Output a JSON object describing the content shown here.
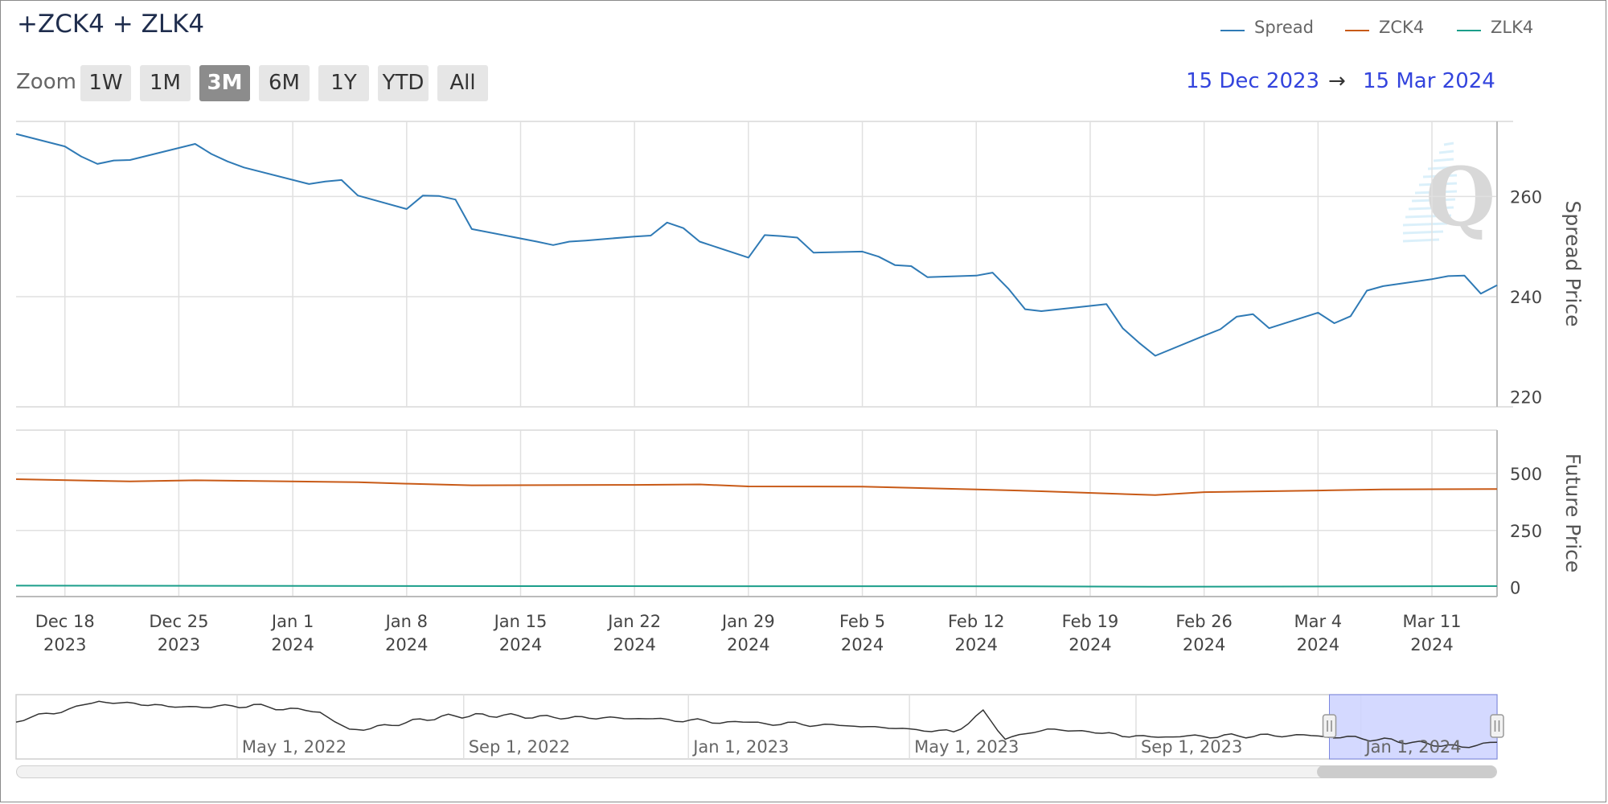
{
  "header": {
    "title": "+ZCK4 + ZLK4",
    "zoom_label": "Zoom",
    "zoom_buttons": [
      "1W",
      "1M",
      "3M",
      "6M",
      "1Y",
      "YTD",
      "All"
    ],
    "zoom_active": "3M",
    "range_start": "15 Dec 2023",
    "range_arrow": "→",
    "range_end": "15 Mar 2024"
  },
  "legend": [
    {
      "name": "Spread",
      "color": "#2f7ab5"
    },
    {
      "name": "ZCK4",
      "color": "#c85a17"
    },
    {
      "name": "ZLK4",
      "color": "#1b9e8a"
    }
  ],
  "colors": {
    "spread": "#2f7ab5",
    "zck4": "#c85a17",
    "zlk4": "#1b9e8a",
    "grid": "#e0e0e0",
    "navigator_mask": "#ccd2ff"
  },
  "watermark_icon": "q-logo-icon",
  "chart_data": [
    {
      "type": "line",
      "panel": "spread",
      "ylabel": "Spread Price",
      "ylim": [
        218,
        275
      ],
      "yticks": [
        220,
        240,
        260
      ],
      "x_start": "2023-12-15",
      "x_end": "2024-03-15",
      "x_tick_labels": [
        {
          "date": "2023-12-18",
          "line1": "Dec 18",
          "line2": "2023"
        },
        {
          "date": "2023-12-25",
          "line1": "Dec 25",
          "line2": "2023"
        },
        {
          "date": "2024-01-01",
          "line1": "Jan 1",
          "line2": "2024"
        },
        {
          "date": "2024-01-08",
          "line1": "Jan 8",
          "line2": "2024"
        },
        {
          "date": "2024-01-15",
          "line1": "Jan 15",
          "line2": "2024"
        },
        {
          "date": "2024-01-22",
          "line1": "Jan 22",
          "line2": "2024"
        },
        {
          "date": "2024-01-29",
          "line1": "Jan 29",
          "line2": "2024"
        },
        {
          "date": "2024-02-05",
          "line1": "Feb 5",
          "line2": "2024"
        },
        {
          "date": "2024-02-12",
          "line1": "Feb 12",
          "line2": "2024"
        },
        {
          "date": "2024-02-19",
          "line1": "Feb 19",
          "line2": "2024"
        },
        {
          "date": "2024-02-26",
          "line1": "Feb 26",
          "line2": "2024"
        },
        {
          "date": "2024-03-04",
          "line1": "Mar 4",
          "line2": "2024"
        },
        {
          "date": "2024-03-11",
          "line1": "Mar 11",
          "line2": "2024"
        }
      ],
      "series": [
        {
          "name": "Spread",
          "color": "#2f7ab5",
          "x": [
            "2023-12-15",
            "2023-12-18",
            "2023-12-19",
            "2023-12-20",
            "2023-12-21",
            "2023-12-22",
            "2023-12-26",
            "2023-12-27",
            "2023-12-28",
            "2023-12-29",
            "2024-01-02",
            "2024-01-03",
            "2024-01-04",
            "2024-01-05",
            "2024-01-08",
            "2024-01-09",
            "2024-01-10",
            "2024-01-11",
            "2024-01-12",
            "2024-01-16",
            "2024-01-17",
            "2024-01-18",
            "2024-01-19",
            "2024-01-22",
            "2024-01-23",
            "2024-01-24",
            "2024-01-25",
            "2024-01-26",
            "2024-01-29",
            "2024-01-30",
            "2024-01-31",
            "2024-02-01",
            "2024-02-02",
            "2024-02-05",
            "2024-02-06",
            "2024-02-07",
            "2024-02-08",
            "2024-02-09",
            "2024-02-12",
            "2024-02-13",
            "2024-02-14",
            "2024-02-15",
            "2024-02-16",
            "2024-02-20",
            "2024-02-21",
            "2024-02-22",
            "2024-02-23",
            "2024-02-26",
            "2024-02-27",
            "2024-02-28",
            "2024-02-29",
            "2024-03-01",
            "2024-03-04",
            "2024-03-05",
            "2024-03-06",
            "2024-03-07",
            "2024-03-08",
            "2024-03-11",
            "2024-03-12",
            "2024-03-13",
            "2024-03-14",
            "2024-03-15"
          ],
          "values": [
            272.5,
            270.0,
            268.0,
            266.5,
            267.2,
            267.3,
            270.5,
            268.5,
            267.0,
            265.8,
            262.5,
            263.0,
            263.3,
            260.2,
            257.5,
            260.2,
            260.1,
            259.4,
            253.5,
            251.0,
            250.3,
            251.0,
            251.2,
            252.0,
            252.2,
            254.8,
            253.7,
            251.0,
            247.8,
            252.3,
            252.1,
            251.8,
            248.8,
            249.0,
            248.0,
            246.3,
            246.1,
            243.9,
            244.2,
            244.8,
            241.5,
            237.5,
            237.1,
            238.5,
            233.7,
            230.8,
            228.2,
            232.2,
            233.5,
            236.0,
            236.5,
            233.7,
            236.8,
            234.7,
            236.1,
            241.2,
            242.1,
            243.5,
            244.1,
            244.2,
            240.6,
            242.3
          ]
        }
      ]
    },
    {
      "type": "line",
      "panel": "futures",
      "ylabel": "Future Price",
      "ylim": [
        -40,
        690
      ],
      "yticks": [
        0,
        250,
        500
      ],
      "series": [
        {
          "name": "ZCK4",
          "color": "#c85a17",
          "x": [
            "2023-12-15",
            "2023-12-22",
            "2023-12-26",
            "2024-01-05",
            "2024-01-08",
            "2024-01-12",
            "2024-01-22",
            "2024-01-26",
            "2024-01-29",
            "2024-02-05",
            "2024-02-12",
            "2024-02-16",
            "2024-02-23",
            "2024-02-26",
            "2024-03-04",
            "2024-03-08",
            "2024-03-15"
          ],
          "values": [
            475,
            465,
            470,
            462,
            455,
            448,
            450,
            452,
            443,
            442,
            430,
            422,
            405,
            418,
            425,
            430,
            432
          ]
        },
        {
          "name": "ZLK4",
          "color": "#1b9e8a",
          "x": [
            "2023-12-15",
            "2024-01-15",
            "2024-02-15",
            "2024-02-23",
            "2024-03-15"
          ],
          "values": [
            8,
            6,
            5,
            3,
            6
          ]
        }
      ]
    },
    {
      "type": "area",
      "panel": "navigator",
      "x_labels": [
        "May 1, 2022",
        "Sep 1, 2022",
        "Jan 1, 2023",
        "May 1, 2023",
        "Sep 1, 2023",
        "Jan 1, 2024"
      ],
      "series": [
        {
          "name": "Spread",
          "x": [
            "2022-01-01",
            "2022-02-15",
            "2022-03-10",
            "2022-04-01",
            "2022-05-10",
            "2022-06-15",
            "2022-07-01",
            "2022-07-20",
            "2022-08-20",
            "2022-09-15",
            "2022-10-20",
            "2022-12-01",
            "2023-01-10",
            "2023-02-20",
            "2023-04-01",
            "2023-05-01",
            "2023-05-25",
            "2023-06-10",
            "2023-06-22",
            "2023-07-15",
            "2023-08-10",
            "2023-09-01",
            "2023-10-15",
            "2023-12-01",
            "2024-01-10",
            "2024-02-25",
            "2024-03-15"
          ],
          "values": [
            250,
            275,
            272,
            268,
            270,
            262,
            238,
            244,
            256,
            258,
            255,
            254,
            250,
            247,
            244,
            240,
            236,
            262,
            228,
            240,
            236,
            230,
            231,
            232,
            227,
            217,
            223
          ]
        }
      ],
      "selected_start": "2023-12-15",
      "selected_end": "2024-03-15"
    }
  ]
}
